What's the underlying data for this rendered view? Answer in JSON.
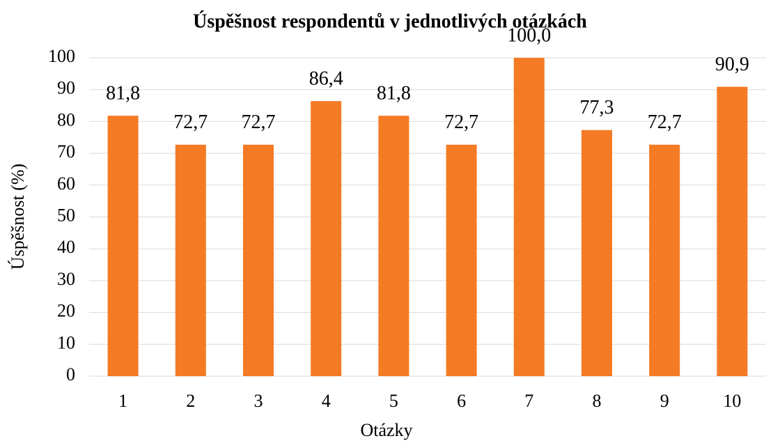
{
  "chart_data": {
    "type": "bar",
    "title": "Úspěšnost respondentů v jednotlivých otázkách",
    "x_label": "Otázky",
    "y_label": "Úspěšnost (%)",
    "categories": [
      "1",
      "2",
      "3",
      "4",
      "5",
      "6",
      "7",
      "8",
      "9",
      "10"
    ],
    "values": [
      81.8,
      72.7,
      72.7,
      86.4,
      81.8,
      72.7,
      100.0,
      77.3,
      72.7,
      90.9
    ],
    "value_labels": [
      "81,8",
      "72,7",
      "72,7",
      "86,4",
      "81,8",
      "72,7",
      "100,0",
      "77,3",
      "72,7",
      "90,9"
    ],
    "color": "#f47a24",
    "ylim": [
      0,
      100
    ],
    "yticks": [
      0,
      10,
      20,
      30,
      40,
      50,
      60,
      70,
      80,
      90,
      100
    ],
    "grid": true
  }
}
